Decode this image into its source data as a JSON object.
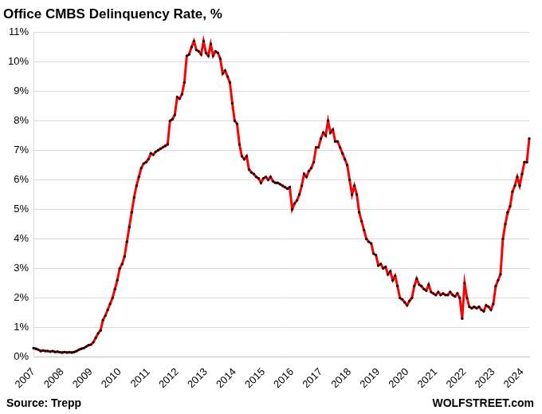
{
  "chart_data": {
    "type": "line",
    "title": "Office CMBS Delinquency Rate, %",
    "annotations": [
      "Source: Trepp",
      "WOLFSTREET.com"
    ],
    "categories": [
      "2007",
      null,
      null,
      null,
      null,
      null,
      null,
      null,
      null,
      null,
      null,
      null,
      "2008",
      null,
      null,
      null,
      null,
      null,
      null,
      null,
      null,
      null,
      null,
      null,
      "2009",
      null,
      null,
      null,
      null,
      null,
      null,
      null,
      null,
      null,
      null,
      null,
      "2010",
      null,
      null,
      null,
      null,
      null,
      null,
      null,
      null,
      null,
      null,
      null,
      "2011",
      null,
      null,
      null,
      null,
      null,
      null,
      null,
      null,
      null,
      null,
      null,
      "2012",
      null,
      null,
      null,
      null,
      null,
      null,
      null,
      null,
      null,
      null,
      null,
      "2013",
      null,
      null,
      null,
      null,
      null,
      null,
      null,
      null,
      null,
      null,
      null,
      "2014",
      null,
      null,
      null,
      null,
      null,
      null,
      null,
      null,
      null,
      null,
      null,
      "2015",
      null,
      null,
      null,
      null,
      null,
      null,
      null,
      null,
      null,
      null,
      null,
      "2016",
      null,
      null,
      null,
      null,
      null,
      null,
      null,
      null,
      null,
      null,
      null,
      "2017",
      null,
      null,
      null,
      null,
      null,
      null,
      null,
      null,
      null,
      null,
      null,
      "2018",
      null,
      null,
      null,
      null,
      null,
      null,
      null,
      null,
      null,
      null,
      null,
      "2019",
      null,
      null,
      null,
      null,
      null,
      null,
      null,
      null,
      null,
      null,
      null,
      "2020",
      null,
      null,
      null,
      null,
      null,
      null,
      null,
      null,
      null,
      null,
      null,
      "2021",
      null,
      null,
      null,
      null,
      null,
      null,
      null,
      null,
      null,
      null,
      null,
      "2022",
      null,
      null,
      null,
      null,
      null,
      null,
      null,
      null,
      null,
      null,
      null,
      "2023",
      null,
      null,
      null,
      null,
      null,
      null,
      null,
      null,
      null,
      null,
      null,
      "2024",
      null,
      null,
      null
    ],
    "values": [
      0.3,
      0.28,
      0.25,
      0.2,
      0.22,
      0.2,
      0.2,
      0.18,
      0.2,
      0.17,
      0.18,
      0.16,
      0.15,
      0.17,
      0.15,
      0.16,
      0.15,
      0.17,
      0.2,
      0.25,
      0.28,
      0.3,
      0.35,
      0.4,
      0.42,
      0.5,
      0.65,
      0.8,
      0.9,
      1.25,
      1.4,
      1.6,
      1.8,
      2.0,
      2.3,
      2.6,
      3.0,
      3.15,
      3.4,
      3.9,
      4.4,
      4.9,
      5.4,
      5.8,
      6.1,
      6.4,
      6.55,
      6.6,
      6.7,
      6.9,
      6.85,
      6.95,
      7.0,
      7.05,
      7.1,
      7.15,
      7.2,
      8.0,
      8.05,
      8.2,
      8.8,
      8.75,
      8.9,
      9.3,
      10.2,
      10.25,
      10.5,
      10.7,
      10.4,
      10.35,
      10.25,
      10.7,
      10.3,
      10.2,
      10.6,
      10.2,
      10.35,
      10.3,
      10.1,
      9.6,
      9.7,
      9.5,
      9.3,
      8.6,
      8.0,
      7.9,
      7.2,
      6.8,
      6.7,
      6.8,
      6.35,
      6.25,
      6.2,
      6.1,
      6.05,
      5.9,
      6.05,
      6.1,
      6.0,
      6.1,
      5.95,
      5.9,
      5.9,
      5.85,
      5.8,
      5.75,
      5.7,
      5.75,
      5.0,
      5.2,
      5.3,
      5.5,
      5.8,
      6.2,
      6.1,
      6.3,
      6.4,
      6.6,
      7.1,
      7.1,
      7.4,
      7.6,
      7.5,
      8.0,
      7.6,
      7.7,
      7.3,
      7.3,
      7.1,
      6.9,
      6.7,
      6.5,
      6.0,
      5.5,
      5.8,
      5.5,
      4.9,
      4.6,
      4.3,
      4.0,
      3.9,
      3.85,
      3.5,
      3.45,
      3.1,
      3.15,
      3.0,
      3.05,
      2.8,
      2.9,
      2.6,
      2.75,
      2.4,
      2.0,
      1.95,
      1.85,
      1.75,
      1.9,
      2.0,
      2.4,
      2.65,
      2.45,
      2.4,
      2.3,
      2.25,
      2.45,
      2.2,
      2.15,
      2.1,
      2.2,
      2.1,
      2.15,
      2.1,
      2.1,
      2.2,
      2.1,
      2.05,
      2.15,
      2.0,
      1.3,
      2.5,
      2.0,
      1.7,
      1.65,
      1.7,
      1.65,
      1.7,
      1.6,
      1.55,
      1.75,
      1.7,
      1.6,
      1.8,
      2.4,
      2.6,
      2.8,
      4.0,
      4.5,
      4.9,
      5.1,
      5.6,
      5.8,
      6.1,
      5.8,
      6.2,
      6.6,
      6.6,
      7.4
    ],
    "color": "#ff0000",
    "marker": "circle",
    "line_style": "solid",
    "ylim": [
      0,
      11
    ],
    "yticks": [
      {
        "value": 0,
        "label": "0%"
      },
      {
        "value": 1,
        "label": "1%"
      },
      {
        "value": 2,
        "label": "2%"
      },
      {
        "value": 3,
        "label": "3%"
      },
      {
        "value": 4,
        "label": "4%"
      },
      {
        "value": 5,
        "label": "5%"
      },
      {
        "value": 6,
        "label": "6%"
      },
      {
        "value": 7,
        "label": "7%"
      },
      {
        "value": 8,
        "label": "8%"
      },
      {
        "value": 9,
        "label": "9%"
      },
      {
        "value": 10,
        "label": "10%"
      },
      {
        "value": 11,
        "label": "11%"
      }
    ],
    "grid": true
  }
}
